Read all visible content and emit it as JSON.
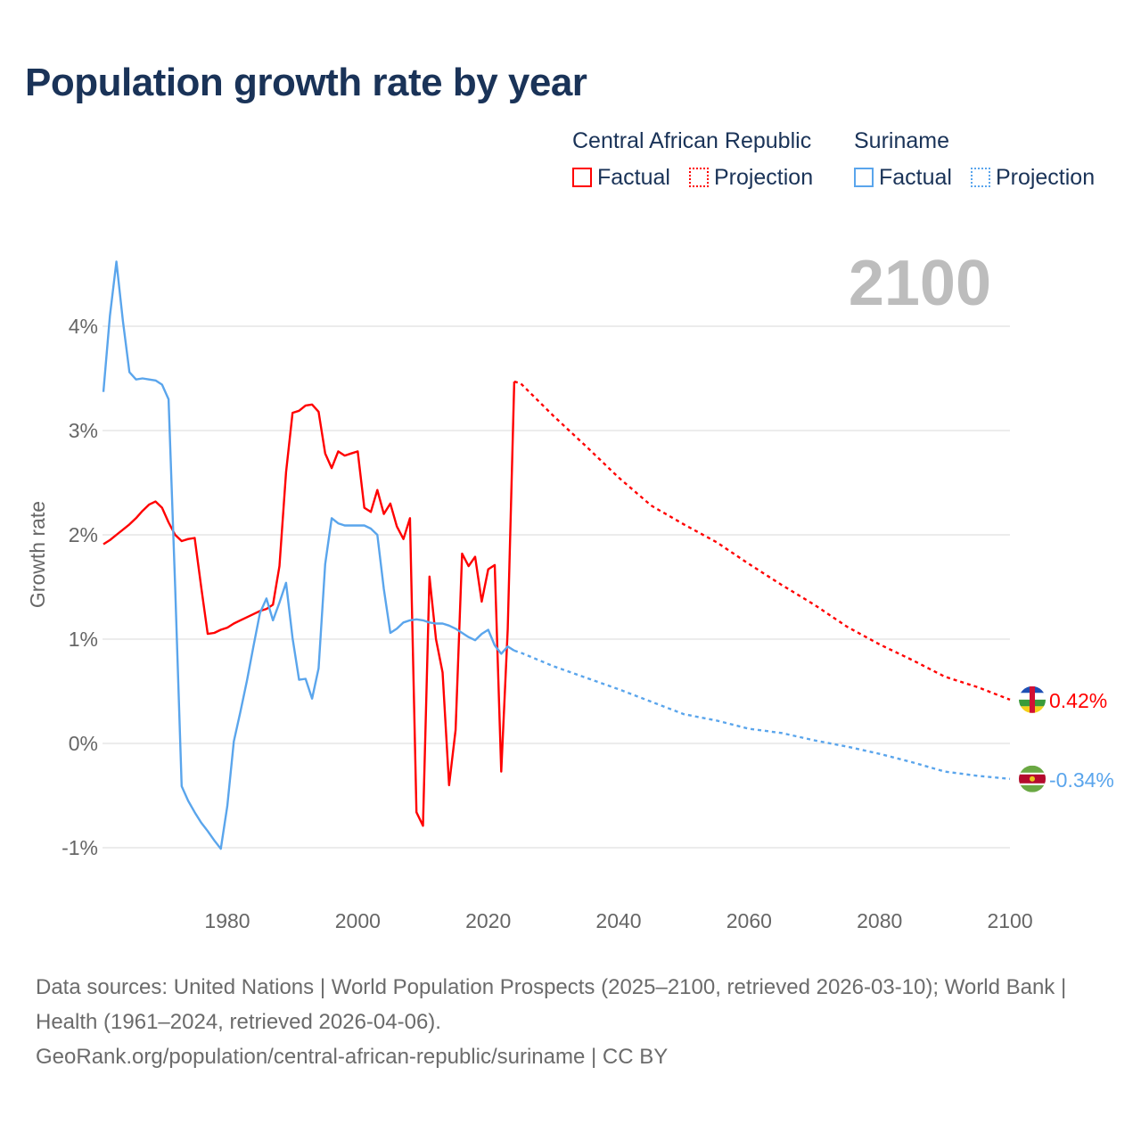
{
  "title": "Population growth rate by year",
  "legend": {
    "groups": [
      {
        "name": "Central African Republic",
        "factual": "Factual",
        "projection": "Projection",
        "color": "#ff0000"
      },
      {
        "name": "Suriname",
        "factual": "Factual",
        "projection": "Projection",
        "color": "#5aa5ec"
      }
    ]
  },
  "year_display": "2100",
  "source": {
    "line1": "Data sources: United Nations | World Population Prospects (2025–2100, retrieved 2026-03-10); World Bank | Health (1961–2024, retrieved 2026-04-06).",
    "line2": "GeoRank.org/population/central-african-republic/suriname | CC BY"
  },
  "chart_data": {
    "type": "line",
    "title": "Population growth rate by year",
    "xlabel": "",
    "ylabel": "Growth rate",
    "xlim": [
      1961,
      2100
    ],
    "ylim": [
      -1.5,
      4.8
    ],
    "x_ticks": [
      1980,
      2000,
      2020,
      2040,
      2060,
      2080,
      2100
    ],
    "x_tick_labels": [
      "1980",
      "2000",
      "2020",
      "2040",
      "2060",
      "2080",
      "2100"
    ],
    "y_ticks": [
      -1,
      0,
      1,
      2,
      3,
      4
    ],
    "y_tick_labels": [
      "-1%",
      "0%",
      "1%",
      "2%",
      "3%",
      "4%"
    ],
    "grid": true,
    "legend_position": "top-right",
    "series": [
      {
        "name": "Central African Republic",
        "color": "#ff0000",
        "end_label": "0.42%",
        "factual": {
          "x_start": 1961,
          "values": [
            1.91,
            1.95,
            2.0,
            2.05,
            2.1,
            2.16,
            2.23,
            2.29,
            2.32,
            2.26,
            2.12,
            2.0,
            1.94,
            1.96,
            1.97,
            1.5,
            1.05,
            1.06,
            1.09,
            1.11,
            1.15,
            1.18,
            1.21,
            1.24,
            1.27,
            1.29,
            1.33,
            1.7,
            2.6,
            3.17,
            3.19,
            3.24,
            3.25,
            3.18,
            2.78,
            2.64,
            2.8,
            2.76,
            2.78,
            2.8,
            2.26,
            2.22,
            2.43,
            2.2,
            2.3,
            2.08,
            1.96,
            2.16,
            -0.66,
            -0.79,
            1.6,
            1.0,
            0.68,
            -0.4,
            0.13,
            1.82,
            1.7,
            1.79,
            1.36,
            1.67,
            1.71,
            -0.27,
            1.1,
            3.47
          ]
        },
        "projection": {
          "x": [
            2024,
            2025,
            2030,
            2035,
            2040,
            2045,
            2050,
            2055,
            2060,
            2065,
            2070,
            2075,
            2080,
            2085,
            2090,
            2095,
            2100
          ],
          "values": [
            3.47,
            3.45,
            3.14,
            2.85,
            2.55,
            2.28,
            2.1,
            1.93,
            1.72,
            1.52,
            1.33,
            1.12,
            0.95,
            0.8,
            0.64,
            0.54,
            0.42
          ]
        }
      },
      {
        "name": "Suriname",
        "color": "#5aa5ec",
        "end_label": "-0.34%",
        "factual": {
          "x_start": 1961,
          "values": [
            3.37,
            4.1,
            4.62,
            4.05,
            3.56,
            3.49,
            3.5,
            3.49,
            3.48,
            3.44,
            3.3,
            1.5,
            -0.41,
            -0.55,
            -0.66,
            -0.76,
            -0.84,
            -0.93,
            -1.01,
            -0.6,
            0.02,
            0.3,
            0.6,
            0.93,
            1.25,
            1.39,
            1.18,
            1.35,
            1.54,
            1.01,
            0.61,
            0.62,
            0.43,
            0.72,
            1.72,
            2.16,
            2.11,
            2.09,
            2.09,
            2.09,
            2.09,
            2.06,
            2.0,
            1.48,
            1.06,
            1.1,
            1.16,
            1.18,
            1.19,
            1.18,
            1.16,
            1.15,
            1.15,
            1.13,
            1.1,
            1.06,
            1.02,
            0.99,
            1.05,
            1.09,
            0.94,
            0.86,
            0.93,
            0.89
          ]
        },
        "projection": {
          "x": [
            2024,
            2025,
            2030,
            2035,
            2040,
            2045,
            2050,
            2055,
            2060,
            2065,
            2070,
            2075,
            2080,
            2085,
            2090,
            2095,
            2100
          ],
          "values": [
            0.89,
            0.87,
            0.74,
            0.63,
            0.52,
            0.4,
            0.28,
            0.22,
            0.14,
            0.1,
            0.03,
            -0.03,
            -0.1,
            -0.18,
            -0.27,
            -0.31,
            -0.34
          ]
        }
      }
    ]
  }
}
